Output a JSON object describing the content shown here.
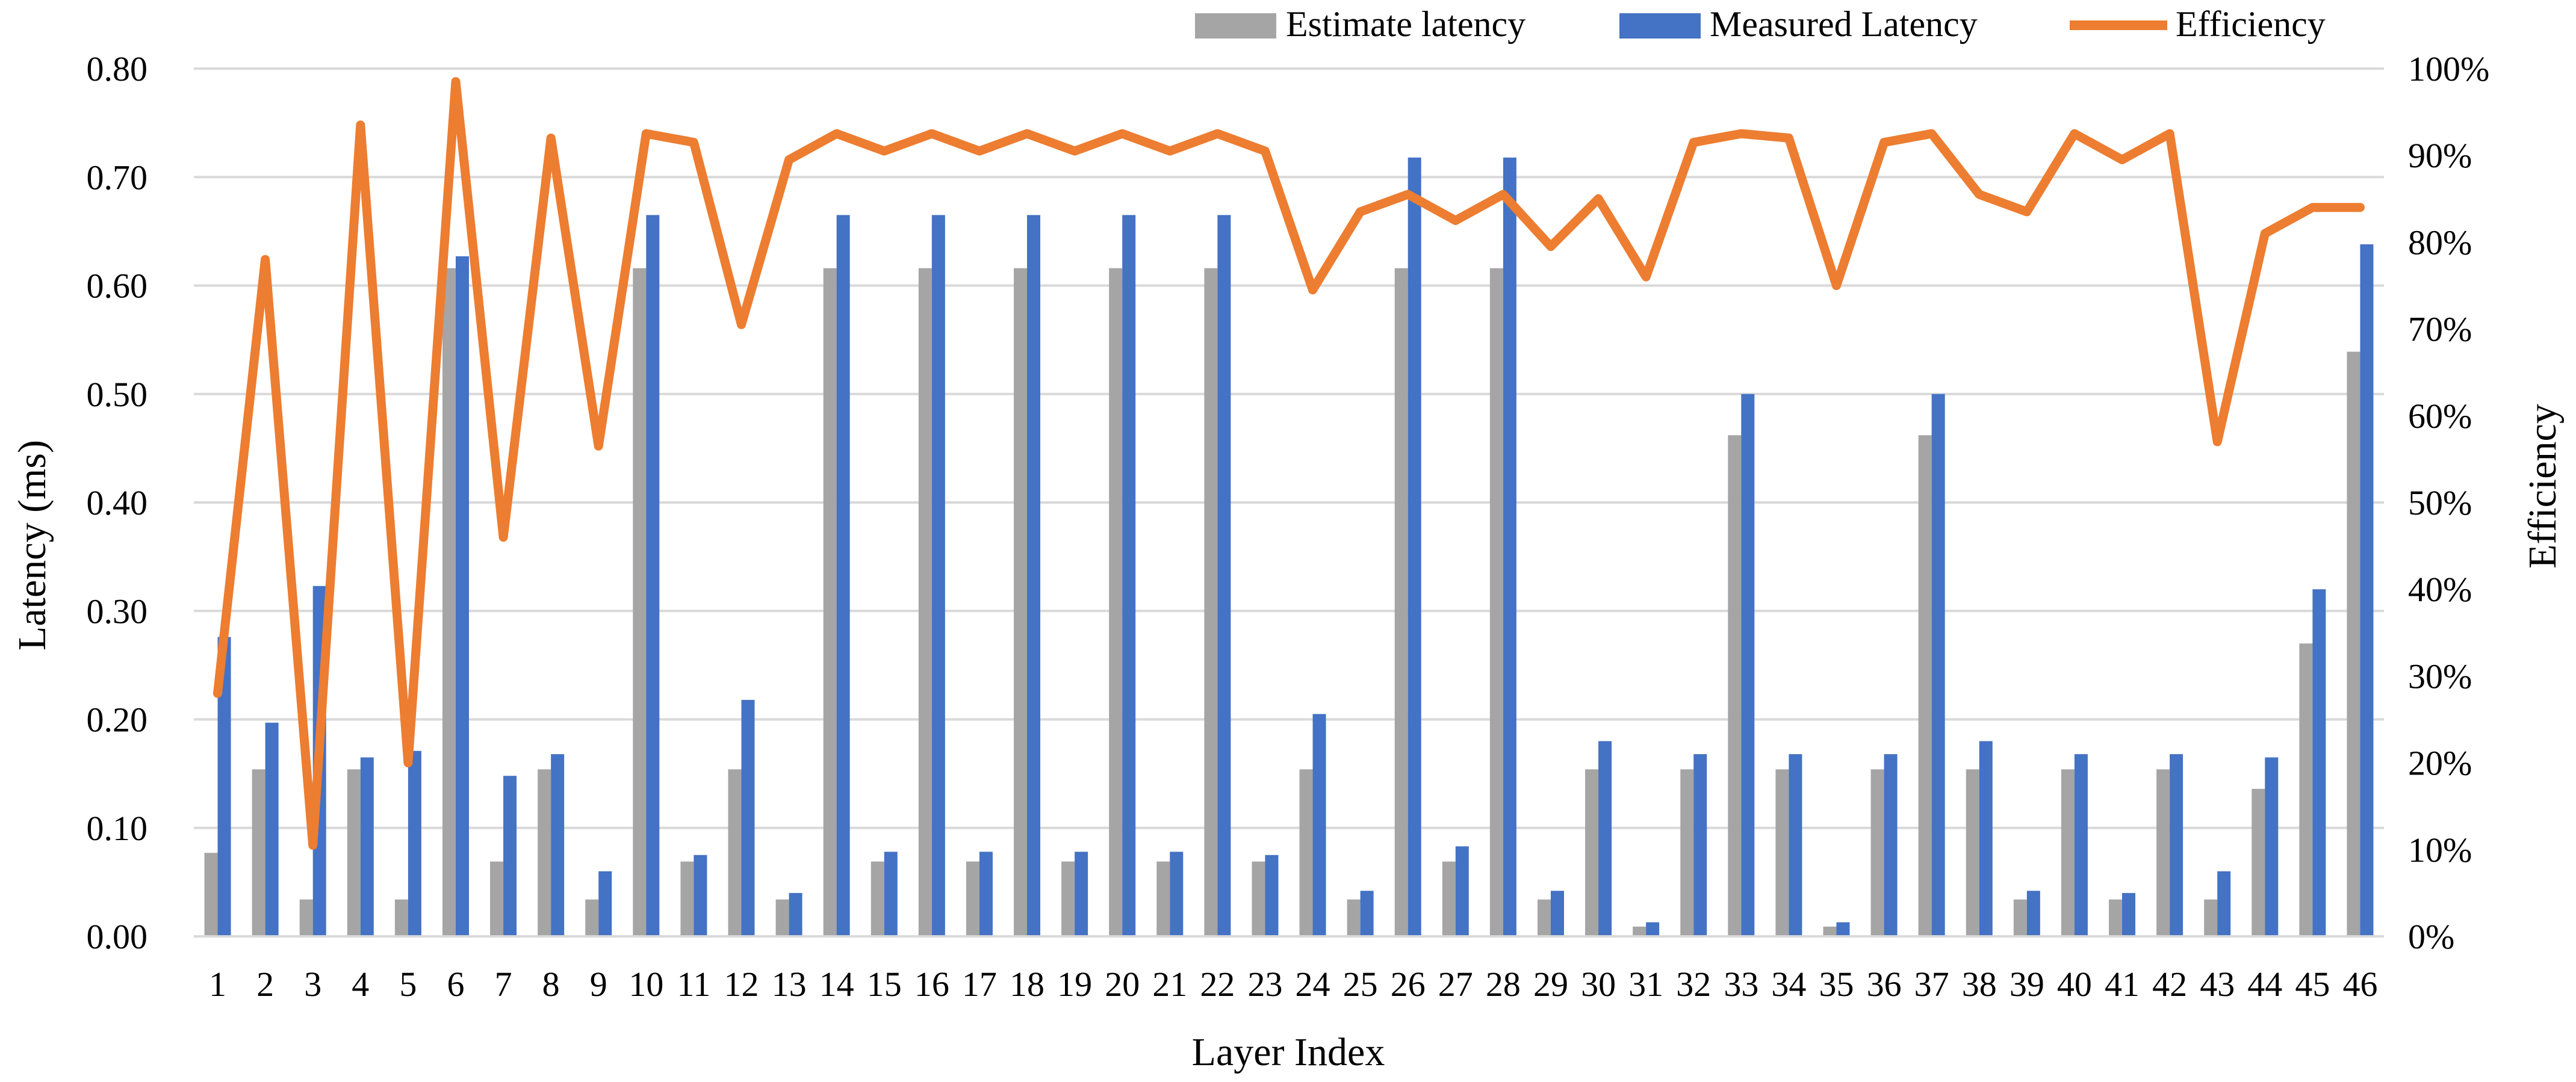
{
  "chart_data": {
    "type": "bar",
    "categories": [
      "1",
      "2",
      "3",
      "4",
      "5",
      "6",
      "7",
      "8",
      "9",
      "10",
      "11",
      "12",
      "13",
      "14",
      "15",
      "16",
      "17",
      "18",
      "19",
      "20",
      "21",
      "22",
      "23",
      "24",
      "25",
      "26",
      "27",
      "28",
      "29",
      "30",
      "31",
      "32",
      "33",
      "34",
      "35",
      "36",
      "37",
      "38",
      "39",
      "40",
      "41",
      "42",
      "43",
      "44",
      "45",
      "46"
    ],
    "series": [
      {
        "name": "Estimate latency",
        "kind": "bar",
        "axis": "left",
        "color": "#a5a5a5",
        "values": [
          0.077,
          0.154,
          0.034,
          0.154,
          0.034,
          0.616,
          0.069,
          0.154,
          0.034,
          0.616,
          0.069,
          0.154,
          0.034,
          0.616,
          0.069,
          0.616,
          0.069,
          0.616,
          0.069,
          0.616,
          0.069,
          0.616,
          0.069,
          0.154,
          0.034,
          0.616,
          0.069,
          0.616,
          0.034,
          0.154,
          0.009,
          0.154,
          0.462,
          0.154,
          0.009,
          0.154,
          0.462,
          0.154,
          0.034,
          0.154,
          0.034,
          0.154,
          0.034,
          0.136,
          0.27,
          0.539
        ]
      },
      {
        "name": "Measured Latency",
        "kind": "bar",
        "axis": "left",
        "color": "#4472c4",
        "values": [
          0.276,
          0.197,
          0.323,
          0.165,
          0.171,
          0.627,
          0.148,
          0.168,
          0.06,
          0.665,
          0.075,
          0.218,
          0.04,
          0.665,
          0.078,
          0.665,
          0.078,
          0.665,
          0.078,
          0.665,
          0.078,
          0.665,
          0.075,
          0.205,
          0.042,
          0.718,
          0.083,
          0.718,
          0.042,
          0.18,
          0.013,
          0.168,
          0.5,
          0.168,
          0.013,
          0.168,
          0.5,
          0.18,
          0.042,
          0.168,
          0.04,
          0.168,
          0.06,
          0.165,
          0.32,
          0.638
        ]
      },
      {
        "name": "Efficiency",
        "kind": "line",
        "axis": "right",
        "color": "#ed7d31",
        "values": [
          28.0,
          78.0,
          10.5,
          93.5,
          20.0,
          98.5,
          46.0,
          92.0,
          56.5,
          92.5,
          91.5,
          70.5,
          89.5,
          92.5,
          90.5,
          92.5,
          90.5,
          92.5,
          90.5,
          92.5,
          90.5,
          92.5,
          90.5,
          74.5,
          83.5,
          85.5,
          82.5,
          85.5,
          79.5,
          85.0,
          76.0,
          91.5,
          92.5,
          92.0,
          75.0,
          91.5,
          92.5,
          85.5,
          83.5,
          92.5,
          89.5,
          92.5,
          57.0,
          81.0,
          84.0,
          84.0
        ]
      }
    ],
    "xlabel": "Layer Index",
    "ylabel": "Latency (ms)",
    "y2label": "Efficiency",
    "ylim": [
      0,
      0.8
    ],
    "y2lim": [
      0,
      100
    ],
    "yticks": [
      "0.00",
      "0.10",
      "0.20",
      "0.30",
      "0.40",
      "0.50",
      "0.60",
      "0.70",
      "0.80"
    ],
    "y2ticks": [
      "0%",
      "10%",
      "20%",
      "30%",
      "40%",
      "50%",
      "60%",
      "70%",
      "80%",
      "90%",
      "100%"
    ],
    "legend": "top-right",
    "grid": true
  }
}
